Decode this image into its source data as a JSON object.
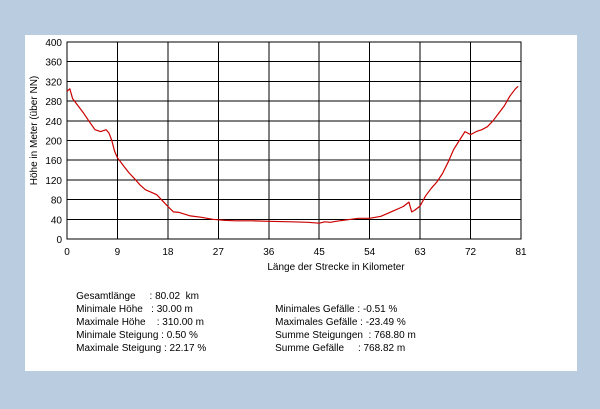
{
  "chart_data": {
    "type": "line",
    "title": "",
    "xlabel": "Länge der Strecke in Kilometer",
    "ylabel": "Höhe in Meter (über NN)",
    "xlim": [
      0,
      81
    ],
    "ylim": [
      0,
      400
    ],
    "xticks": [
      "0",
      "9",
      "18",
      "27",
      "36",
      "45",
      "54",
      "63",
      "72",
      "81"
    ],
    "yticks": [
      "0",
      "40",
      "80",
      "120",
      "160",
      "200",
      "240",
      "280",
      "320",
      "360",
      "400"
    ],
    "grid": true,
    "line_color": "#cc0000",
    "series": [
      {
        "name": "",
        "x": [
          0,
          0.5,
          1,
          2,
          3,
          4,
          5,
          6,
          7,
          7.5,
          8,
          8.5,
          9,
          10,
          11,
          12,
          13,
          14,
          15,
          16,
          17,
          18,
          19,
          20,
          22,
          24,
          26,
          28,
          30,
          33,
          36,
          40,
          43,
          45,
          46,
          47,
          48,
          50,
          52,
          54,
          56,
          58,
          60,
          61,
          61.5,
          62,
          63,
          64,
          65,
          66,
          67,
          68,
          69,
          70,
          71,
          72,
          73,
          74,
          75,
          76,
          77,
          78,
          79,
          80,
          80.5
        ],
        "y": [
          300,
          305,
          285,
          270,
          255,
          238,
          222,
          218,
          222,
          215,
          200,
          178,
          165,
          150,
          135,
          123,
          110,
          100,
          95,
          90,
          78,
          66,
          55,
          54,
          47,
          44,
          40,
          38,
          37,
          37,
          36,
          35,
          34,
          32,
          35,
          34,
          36,
          39,
          42,
          42,
          46,
          56,
          66,
          75,
          55,
          58,
          67,
          88,
          103,
          116,
          133,
          156,
          182,
          200,
          218,
          212,
          218,
          222,
          228,
          240,
          255,
          270,
          290,
          305,
          310
        ]
      }
    ]
  },
  "stats": {
    "left": [
      {
        "label": "Gesamtlänge",
        "sep": "     : ",
        "value": "80.02  km"
      },
      {
        "label": "Minimale Höhe",
        "sep": "   : ",
        "value": "30.00 m"
      },
      {
        "label": "Maximale Höhe",
        "sep": "    : ",
        "value": "310.00 m"
      },
      {
        "label": "Minimale Steigung",
        "sep": " : ",
        "value": "0.50 %"
      },
      {
        "label": "Maximale Steigung",
        "sep": " : ",
        "value": "22.17 %"
      }
    ],
    "right": [
      {
        "label": "Minimales Gefälle",
        "sep": " : ",
        "value": "-0.51 %"
      },
      {
        "label": "Maximales Gefälle",
        "sep": " : ",
        "value": "-23.49 %"
      },
      {
        "label": "Summe Steigungen",
        "sep": "  : ",
        "value": "768.80 m"
      },
      {
        "label": "Summe Gefälle",
        "sep": "     : ",
        "value": "768.82 m"
      }
    ]
  }
}
